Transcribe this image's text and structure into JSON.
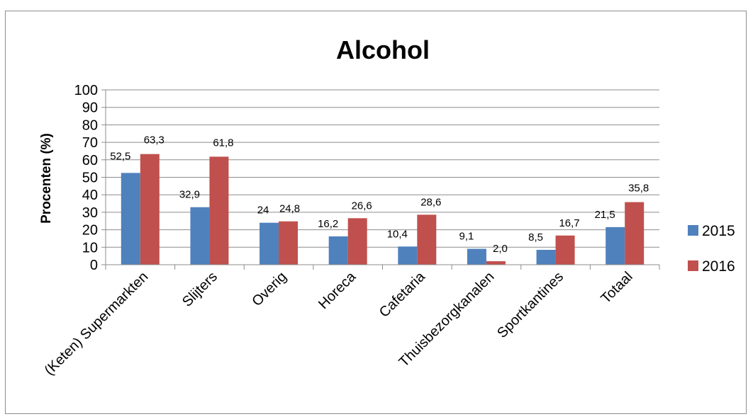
{
  "chart_data": {
    "type": "bar",
    "title": "Alcohol",
    "xlabel": "",
    "ylabel": "Procenten (%)",
    "ylim": [
      0,
      100
    ],
    "yticks": [
      0,
      10,
      20,
      30,
      40,
      50,
      60,
      70,
      80,
      90,
      100
    ],
    "ytick_labels": [
      "0",
      "10",
      "20",
      "30",
      "40",
      "50",
      "60",
      "70",
      "80",
      "90",
      "100"
    ],
    "grid": true,
    "legend_position": "right",
    "categories": [
      "(Keten) Supermarkten",
      "Slijters",
      "Overig",
      "Horeca",
      "Cafetaria",
      "Thuisbezorgkanalen",
      "Sportkantines",
      "Totaal"
    ],
    "series": [
      {
        "name": "2015",
        "color": "#4f81bd",
        "values": [
          52.5,
          32.9,
          24,
          16.2,
          10.4,
          9.1,
          8.5,
          21.5
        ],
        "labels": [
          "52,5",
          "32,9",
          "24",
          "16,2",
          "10,4",
          "9,1",
          "8,5",
          "21,5"
        ]
      },
      {
        "name": "2016",
        "color": "#c0504d",
        "values": [
          63.3,
          61.8,
          24.8,
          26.6,
          28.6,
          2.0,
          16.7,
          35.8
        ],
        "labels": [
          "63,3",
          "61,8",
          "24,8",
          "26,6",
          "28,6",
          "2,0",
          "16,7",
          "35,8"
        ]
      }
    ]
  }
}
